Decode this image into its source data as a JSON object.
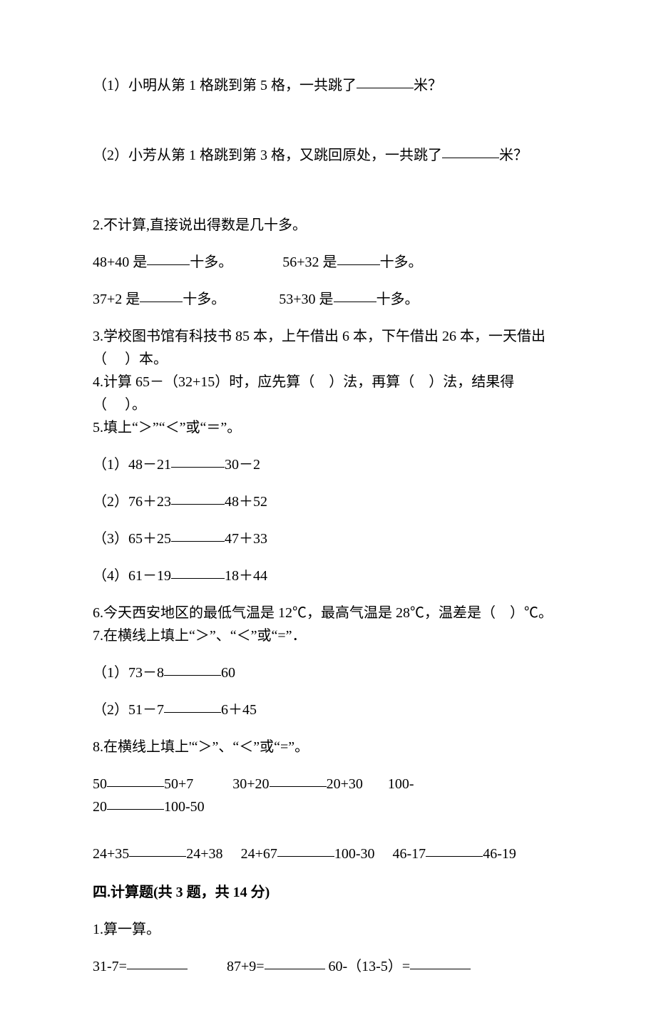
{
  "q1": {
    "sub1_pre": "（1）小明从第 1 格跳到第 5 格，一共跳了",
    "sub1_post": "米？",
    "sub2_pre": "（2）小芳从第 1 格跳到第 3 格，又跳回原处，一共跳了",
    "sub2_post": "米？"
  },
  "q2": {
    "title": "2.不计算,直接说出得数是几十多。",
    "r1a_pre": "48+40 是",
    "r1a_post": "十多。",
    "r1b_pre": "56+32 是",
    "r1b_post": "十多。",
    "r2a_pre": "37+2 是",
    "r2a_post": "十多。",
    "r2b_pre": "53+30 是",
    "r2b_post": "十多。"
  },
  "q3": {
    "l1": "3.学校图书馆有科技书 85 本，上午借出 6 本，下午借出 26 本，一天借出",
    "l2": "（     ）本。"
  },
  "q4": {
    "l1": "4.计算 65－（32+15）时，应先算（    ）法，再算（    ）法，结果得",
    "l2": "（     ）。"
  },
  "q5": {
    "title": "5.填上“＞”“＜”或“＝”。",
    "a_pre": "（1）48－21",
    "a_post": "30－2",
    "b_pre": "（2）76＋23",
    "b_post": "48＋52",
    "c_pre": "（3）65＋25",
    "c_post": "47＋33",
    "d_pre": "（4）61－19",
    "d_post": "18＋44"
  },
  "q6": "6.今天西安地区的最低气温是 12℃，最高气温是 28℃，温差是（    ）℃。",
  "q7": {
    "title": "7.在横线上填上“＞”、“＜”或“=”．",
    "a_pre": "（1）73－8",
    "a_post": "60",
    "b_pre": "（2）51－7",
    "b_post": "6＋45"
  },
  "q8": {
    "title": "8.在横线上填上'“＞”、“＜”或“=”。",
    "r1a_pre": "50",
    "r1a_post": "50+7",
    "r1b_pre": "30+20",
    "r1b_post": "20+30",
    "r1c_pre": "100-",
    "r1d_pre": "20",
    "r1d_post": "100-50",
    "r2a_pre": "24+35",
    "r2a_post": "24+38",
    "r2b_pre": "24+67",
    "r2b_post": "100-30",
    "r2c_pre": "46-17",
    "r2c_post": "46-19"
  },
  "sec4": {
    "heading": "四.计算题(共 3 题，共 14 分)",
    "q1_title": "1.算一算。",
    "q1a_pre": "31-7=",
    "q1b_pre": "87+9=",
    "q1c_pre": " 60-（13-5）="
  }
}
